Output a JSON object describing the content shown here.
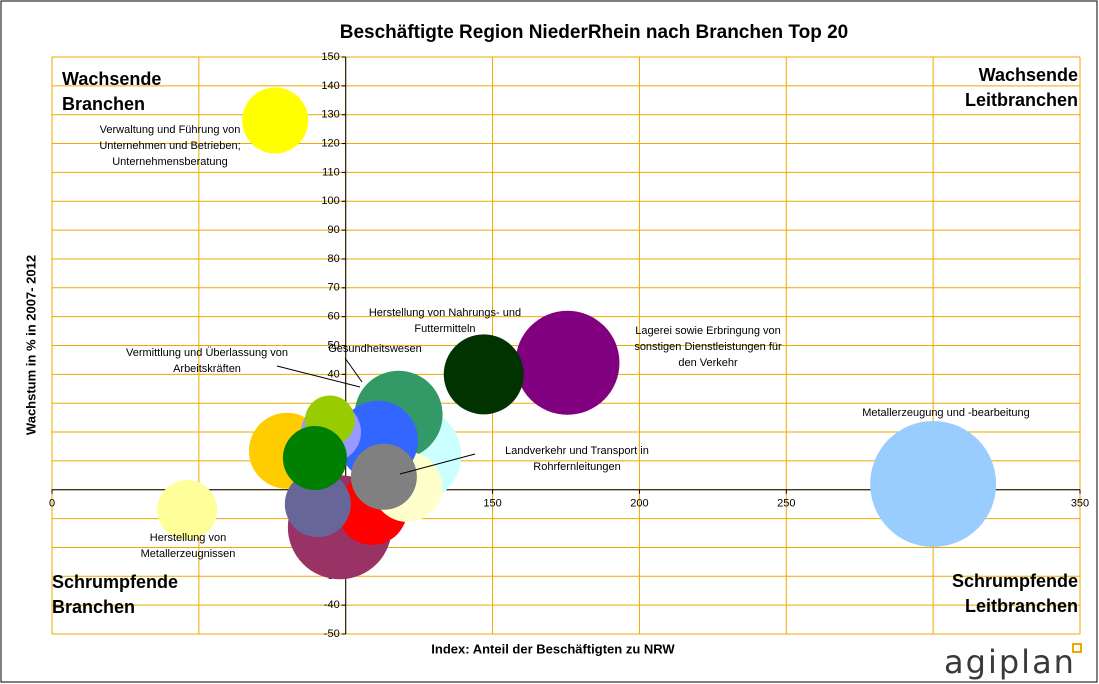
{
  "chart_data": {
    "type": "bubble",
    "title": "Beschäftigte Region NiederRhein nach Branchen Top 20",
    "x_label": "Index: Anteil der Beschäftigten zu NRW",
    "y_label": "Wachstum in % in 2007- 2012",
    "xlim": [
      0,
      350
    ],
    "ylim": [
      -50,
      150
    ],
    "xticks": [
      0,
      50,
      100,
      150,
      200,
      250,
      300,
      350
    ],
    "yticks": [
      -50,
      -40,
      -30,
      -20,
      -10,
      0,
      10,
      20,
      30,
      40,
      50,
      60,
      70,
      80,
      90,
      100,
      110,
      120,
      130,
      140,
      150
    ],
    "grid": true,
    "grid_color": "#f0a800",
    "x": [
      300,
      175.5,
      147,
      123,
      118,
      98,
      109,
      121,
      111,
      80,
      95,
      94.6,
      90.5,
      89.5,
      113,
      76,
      46
    ],
    "values": [
      2,
      44,
      40,
      12,
      26,
      -13,
      -7,
      1,
      17,
      13.5,
      20,
      24,
      -5,
      11,
      4.5,
      128,
      -7
    ],
    "sizes": [
      63,
      52,
      40,
      48,
      44,
      52,
      35,
      35,
      40,
      38,
      30,
      25,
      33,
      32,
      33,
      33,
      30
    ],
    "colors": [
      "#99ccff",
      "#800080",
      "#003300",
      "#ccffff",
      "#339966",
      "#993366",
      "#ff0000",
      "#ffffcc",
      "#3366ff",
      "#ffcc00",
      "#9999ff",
      "#99cc00",
      "#666699",
      "#008000",
      "#808080",
      "#ffff00",
      "#ffff99"
    ],
    "annotations": [
      {
        "lines": [
          "Verwaltung und Führung von",
          "Unternehmen und Betrieben;",
          "Unternehmensberatung"
        ]
      },
      {
        "lines": [
          "Herstellung von Nahrungs- und",
          "Futtermitteln"
        ]
      },
      {
        "lines": [
          "Vermittlung und Überlassung von",
          "Arbeitskräften"
        ]
      },
      {
        "lines": [
          "Gesundheitswesen"
        ]
      },
      {
        "lines": [
          "Lagerei sowie Erbringung von",
          "sonstigen Dienstleistungen für",
          "den Verkehr"
        ]
      },
      {
        "lines": [
          "Metallerzeugung und -bearbeitung"
        ]
      },
      {
        "lines": [
          "Landverkehr und Transport in",
          "Rohrfernleitungen"
        ]
      },
      {
        "lines": [
          "Herstellung von",
          "Metallerzeugnissen"
        ]
      }
    ],
    "quadrants": [
      {
        "lines": [
          "Wachsende",
          "Branchen"
        ]
      },
      {
        "lines": [
          "Wachsende",
          "Leitbranchen"
        ]
      },
      {
        "lines": [
          "Schrumpfende",
          "Branchen"
        ]
      },
      {
        "lines": [
          "Schrumpfende",
          "Leitbranchen"
        ]
      }
    ],
    "logo": "agiplan"
  }
}
